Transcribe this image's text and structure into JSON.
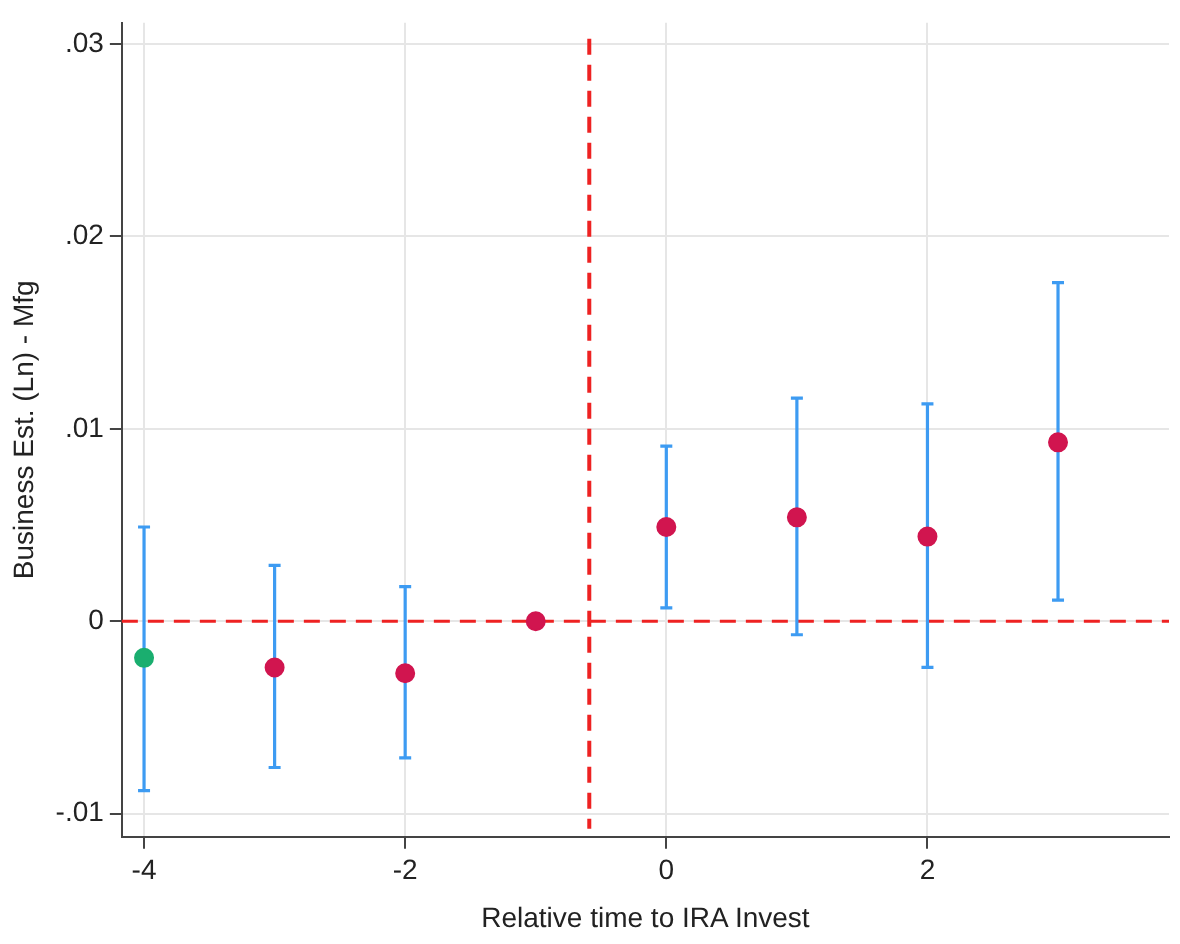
{
  "chart_data": {
    "type": "scatter",
    "xlabel": "Relative time to IRA Invest",
    "ylabel": "Business Est. (Ln) - Mfg",
    "xlim": [
      -4.17,
      3.85
    ],
    "xticks": [
      -4,
      -2,
      0,
      2
    ],
    "ylim": [
      -0.0112,
      0.0311
    ],
    "yticks": [
      {
        "value": -0.01,
        "label": "-.01"
      },
      0,
      {
        "value": 0.01,
        "label": ".01"
      },
      {
        "value": 0.02,
        "label": ".02"
      },
      {
        "value": 0.03,
        "label": ".03"
      }
    ],
    "grid": true,
    "legend": false,
    "marker": "circle",
    "series": [
      {
        "color": "#1aae6f",
        "x": [
          -4
        ],
        "values": [
          -0.0019
        ],
        "errors": [
          [
            -0.0088,
            0.0049
          ]
        ]
      },
      {
        "color": "#d1154f",
        "x": [
          -3,
          -2,
          -1,
          0,
          1,
          2,
          3
        ],
        "values": [
          -0.0024,
          -0.0027,
          0,
          0.0049,
          0.0054,
          0.0044,
          0.0093
        ],
        "errors": [
          [
            -0.0076,
            0.0029
          ],
          [
            -0.0071,
            0.0018
          ],
          null,
          [
            0.0007,
            0.0091
          ],
          [
            -0.0007,
            0.0116
          ],
          [
            -0.0024,
            0.0113
          ],
          [
            0.0011,
            0.0176
          ]
        ]
      }
    ],
    "ref_lines": [
      {
        "axis": "y",
        "value": 0,
        "color": "#ee2222",
        "line_style": "dashed"
      },
      {
        "axis": "x",
        "value": -0.59,
        "color": "#ee2222",
        "line_style": "dashed"
      }
    ]
  }
}
